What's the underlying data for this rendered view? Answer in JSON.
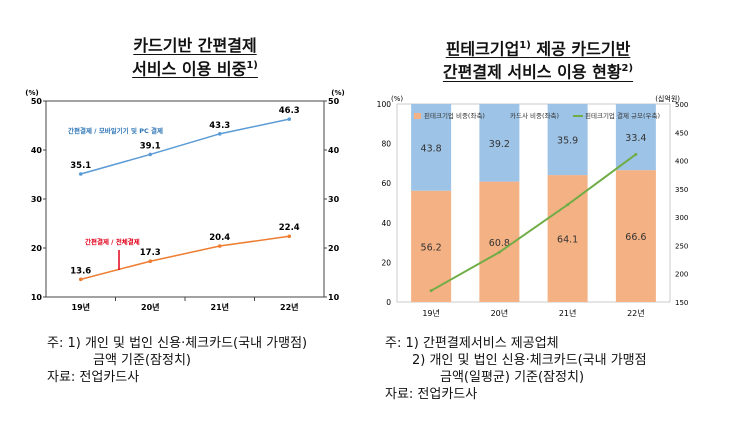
{
  "left": {
    "title_line1": "카드기반 간편결제",
    "title_line2": "서비스 이용 비중",
    "title_sup": "1)",
    "axis_unit_left": "(%)",
    "axis_unit_right": "(%)",
    "notes": {
      "n1": "주: 1) 개인 및 법인 신용·체크카드(국내 가맹점)",
      "n1b": "금액 기준(잠정치)",
      "src": "자료: 전업카드사"
    }
  },
  "right": {
    "title_line1": "핀테크기업",
    "title_sup1": "1)",
    "title_line1b": " 제공 카드기반",
    "title_line2": "간편결제 서비스 이용 현황",
    "title_sup2": "2)",
    "notes": {
      "n1": "주: 1) 간편결제서비스 제공업체",
      "n2": "2) 개인 및 법인 신용·체크카드(국내 가맹점",
      "n2b": "금액(일평균) 기준(잠정치)",
      "src": "자료: 전업카드사"
    }
  },
  "colors": {
    "blue_line": "#5b9bd5",
    "orange_line": "#ed7d31",
    "red_label": "#e0001a",
    "fintech_bar": "#f4b183",
    "card_bar": "#9dc3e6",
    "green_line": "#70ad47"
  },
  "chart_data": [
    {
      "type": "line",
      "x": [
        "19년",
        "20년",
        "21년",
        "22년"
      ],
      "ylim": [
        10,
        50
      ],
      "yticks": [
        "10",
        "20",
        "30",
        "40",
        "50"
      ],
      "series": [
        {
          "name": "간편결제 / 모바일기기 및 PC 결제",
          "values": [
            35.1,
            39.1,
            43.3,
            46.3
          ],
          "labels": [
            "35.1",
            "39.1",
            "43.3",
            "46.3"
          ]
        },
        {
          "name": "간편결제 / 전체결제",
          "values": [
            13.6,
            17.3,
            20.4,
            22.4
          ],
          "labels": [
            "13.6",
            "17.3",
            "20.4",
            "22.4"
          ]
        }
      ]
    },
    {
      "type": "bar",
      "stacked": true,
      "ylabel_left": "(%)",
      "ylabel_right": "(십억원)",
      "categories": [
        "19년",
        "20년",
        "21년",
        "22년"
      ],
      "ylim": [
        0,
        100
      ],
      "yticks": [
        "0",
        "20",
        "40",
        "60",
        "80",
        "100"
      ],
      "y2lim": [
        150,
        500
      ],
      "y2ticks": [
        "150",
        "200",
        "250",
        "300",
        "350",
        "400",
        "450",
        "500"
      ],
      "series": [
        {
          "name": "핀테크기업 비중(좌축)",
          "values": [
            56.2,
            60.8,
            64.1,
            66.6
          ],
          "labels": [
            "56.2",
            "60.8",
            "64.1",
            "66.6"
          ]
        },
        {
          "name": "카드사 비중(좌축)",
          "values": [
            43.8,
            39.2,
            35.9,
            33.4
          ],
          "labels": [
            "43.8",
            "39.2",
            "35.9",
            "33.4"
          ]
        },
        {
          "name": "핀테크기업 결제 규모(우축)",
          "values": [
            170,
            238,
            322,
            411
          ],
          "axis": "right"
        }
      ]
    }
  ]
}
